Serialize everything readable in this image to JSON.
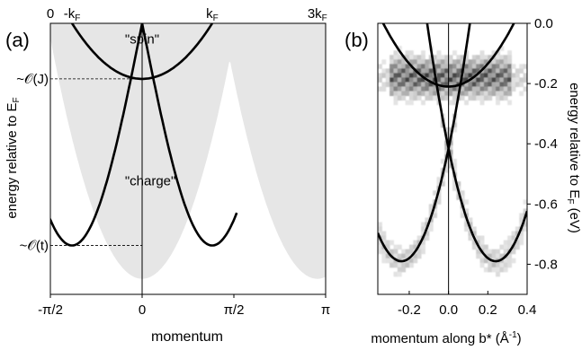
{
  "chart_data": [
    {
      "panel_label": "(a)",
      "type": "line",
      "title": "",
      "xlabel": "momentum",
      "ylabel": "energy relative to E",
      "ylabel_sub": "F",
      "xlim": [
        -1.5708,
        3.1416
      ],
      "ylim": [
        -1.22,
        0
      ],
      "x_ticks": [
        {
          "value": -1.5708,
          "label": "-π/2"
        },
        {
          "value": 0,
          "label": "0"
        },
        {
          "value": 1.5708,
          "label": "π/2"
        },
        {
          "value": 3.1416,
          "label": "π"
        }
      ],
      "top_ticks": [
        {
          "value": -1.5708,
          "label": "0",
          "sub": ""
        },
        {
          "value": -1.2,
          "label": "-k",
          "sub": "F"
        },
        {
          "value": 1.2,
          "label": "k",
          "sub": "F"
        },
        {
          "value": 3.0,
          "label": "3k",
          "sub": "F"
        }
      ],
      "y_annotations": [
        {
          "value": -0.25,
          "prefix": "~",
          "label": "𝒪(J)"
        },
        {
          "value": -1.0,
          "prefix": "~",
          "label": "𝒪(t)"
        }
      ],
      "vertical_line": 0,
      "text_annotations": [
        {
          "text": "\"spin\"",
          "x": 0,
          "y": -0.09
        },
        {
          "text": "\"charge\"",
          "x": 0.14,
          "y": -0.73
        }
      ],
      "continuum_shading": {
        "color": "#e6e6e6"
      },
      "series": [
        {
          "kind": "spinon",
          "kF": 1.2,
          "bottom": -0.25,
          "color": "#000000"
        },
        {
          "kind": "holon",
          "kF": 1.2,
          "bottom": -1.0,
          "color": "#000000"
        }
      ]
    },
    {
      "panel_label": "(b)",
      "type": "heatmap",
      "title": "",
      "xlabel": "momentum along b* (Å",
      "xlabel_sup": "-1",
      "xlabel_suffix": ")",
      "ylabel": "energy relative to E",
      "ylabel_sub": "F",
      "ylabel_suffix": " (eV)",
      "xlim": [
        -0.36,
        0.4
      ],
      "ylim": [
        -0.9,
        0
      ],
      "x_ticks": [
        -0.2,
        0.0,
        0.2,
        0.4
      ],
      "y_ticks": [
        0.0,
        -0.2,
        -0.4,
        -0.6,
        -0.8
      ],
      "vertical_line": 0,
      "curves": [
        {
          "name": "",
          "kind": "parabola",
          "x0": 0,
          "y0": -0.21,
          "k": 1.9
        },
        {
          "name": "",
          "kind": "parabola",
          "x0": 0.24,
          "y0": -0.79,
          "k": 6.5
        },
        {
          "name": "",
          "kind": "parabola",
          "x0": -0.24,
          "y0": -0.79,
          "k": 6.5
        }
      ]
    }
  ]
}
